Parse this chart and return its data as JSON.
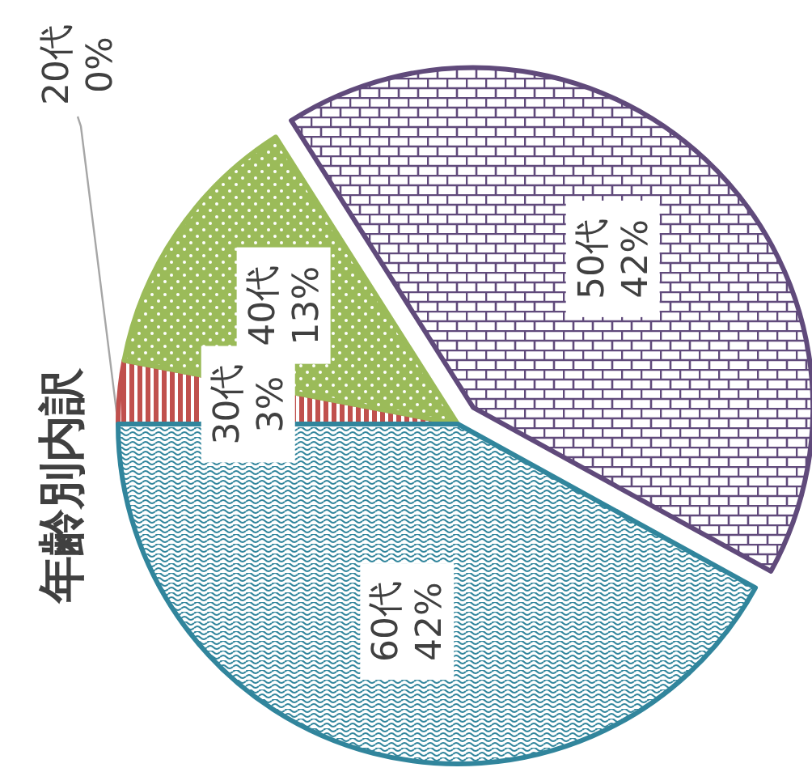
{
  "chart_data": {
    "type": "pie",
    "title": "年齢別内訳",
    "categories": [
      "20代",
      "30代",
      "40代",
      "50代",
      "60代"
    ],
    "values": [
      0,
      3,
      13,
      42,
      42
    ],
    "value_labels": [
      "0%",
      "3%",
      "13%",
      "42%",
      "42%"
    ],
    "colors": [
      "#7f7f7f",
      "#c0504d",
      "#9bbb59",
      "#604a7b",
      "#31859c"
    ]
  }
}
